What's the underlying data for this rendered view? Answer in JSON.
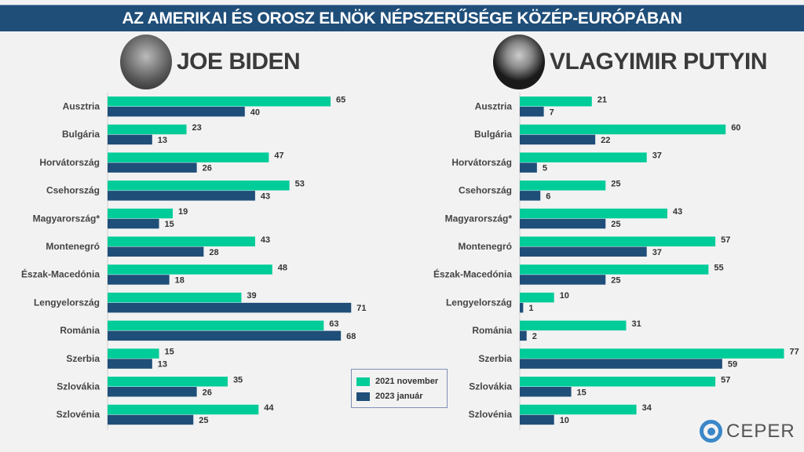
{
  "title": "AZ AMERIKAI ÉS OROSZ ELNÖK NÉPSZERŰSÉGE KÖZÉP-EURÓPÁBAN",
  "colors": {
    "nov2021": "#00cc99",
    "jan2023": "#1f4e79",
    "header": "#1f4e79"
  },
  "legend": [
    "2021 november",
    "2023 január"
  ],
  "logo": "CEPER",
  "chart_data": [
    {
      "type": "bar",
      "orientation": "horizontal",
      "title": "JOE BIDEN",
      "categories": [
        "Ausztria",
        "Bulgária",
        "Horvátország",
        "Csehország",
        "Magyarország*",
        "Montenegró",
        "Észak-Macedónia",
        "Lengyelország",
        "Románia",
        "Szerbia",
        "Szlovákia",
        "Szlovénia"
      ],
      "series": [
        {
          "name": "2021 november",
          "values": [
            65,
            23,
            47,
            53,
            19,
            43,
            48,
            39,
            63,
            15,
            35,
            44
          ]
        },
        {
          "name": "2023 január",
          "values": [
            40,
            13,
            26,
            43,
            15,
            28,
            18,
            71,
            68,
            13,
            26,
            25
          ]
        }
      ]
    },
    {
      "type": "bar",
      "orientation": "horizontal",
      "title": "VLAGYIMIR PUTYIN",
      "categories": [
        "Ausztria",
        "Bulgária",
        "Horvátország",
        "Csehország",
        "Magyarország*",
        "Montenegró",
        "Észak-Macedónia",
        "Lengyelország",
        "Románia",
        "Szerbia",
        "Szlovákia",
        "Szlovénia"
      ],
      "series": [
        {
          "name": "2021 november",
          "values": [
            21,
            60,
            37,
            25,
            43,
            57,
            55,
            10,
            31,
            77,
            57,
            34
          ]
        },
        {
          "name": "2023 január",
          "values": [
            7,
            22,
            5,
            6,
            25,
            37,
            25,
            1,
            2,
            59,
            15,
            10
          ]
        }
      ]
    }
  ]
}
